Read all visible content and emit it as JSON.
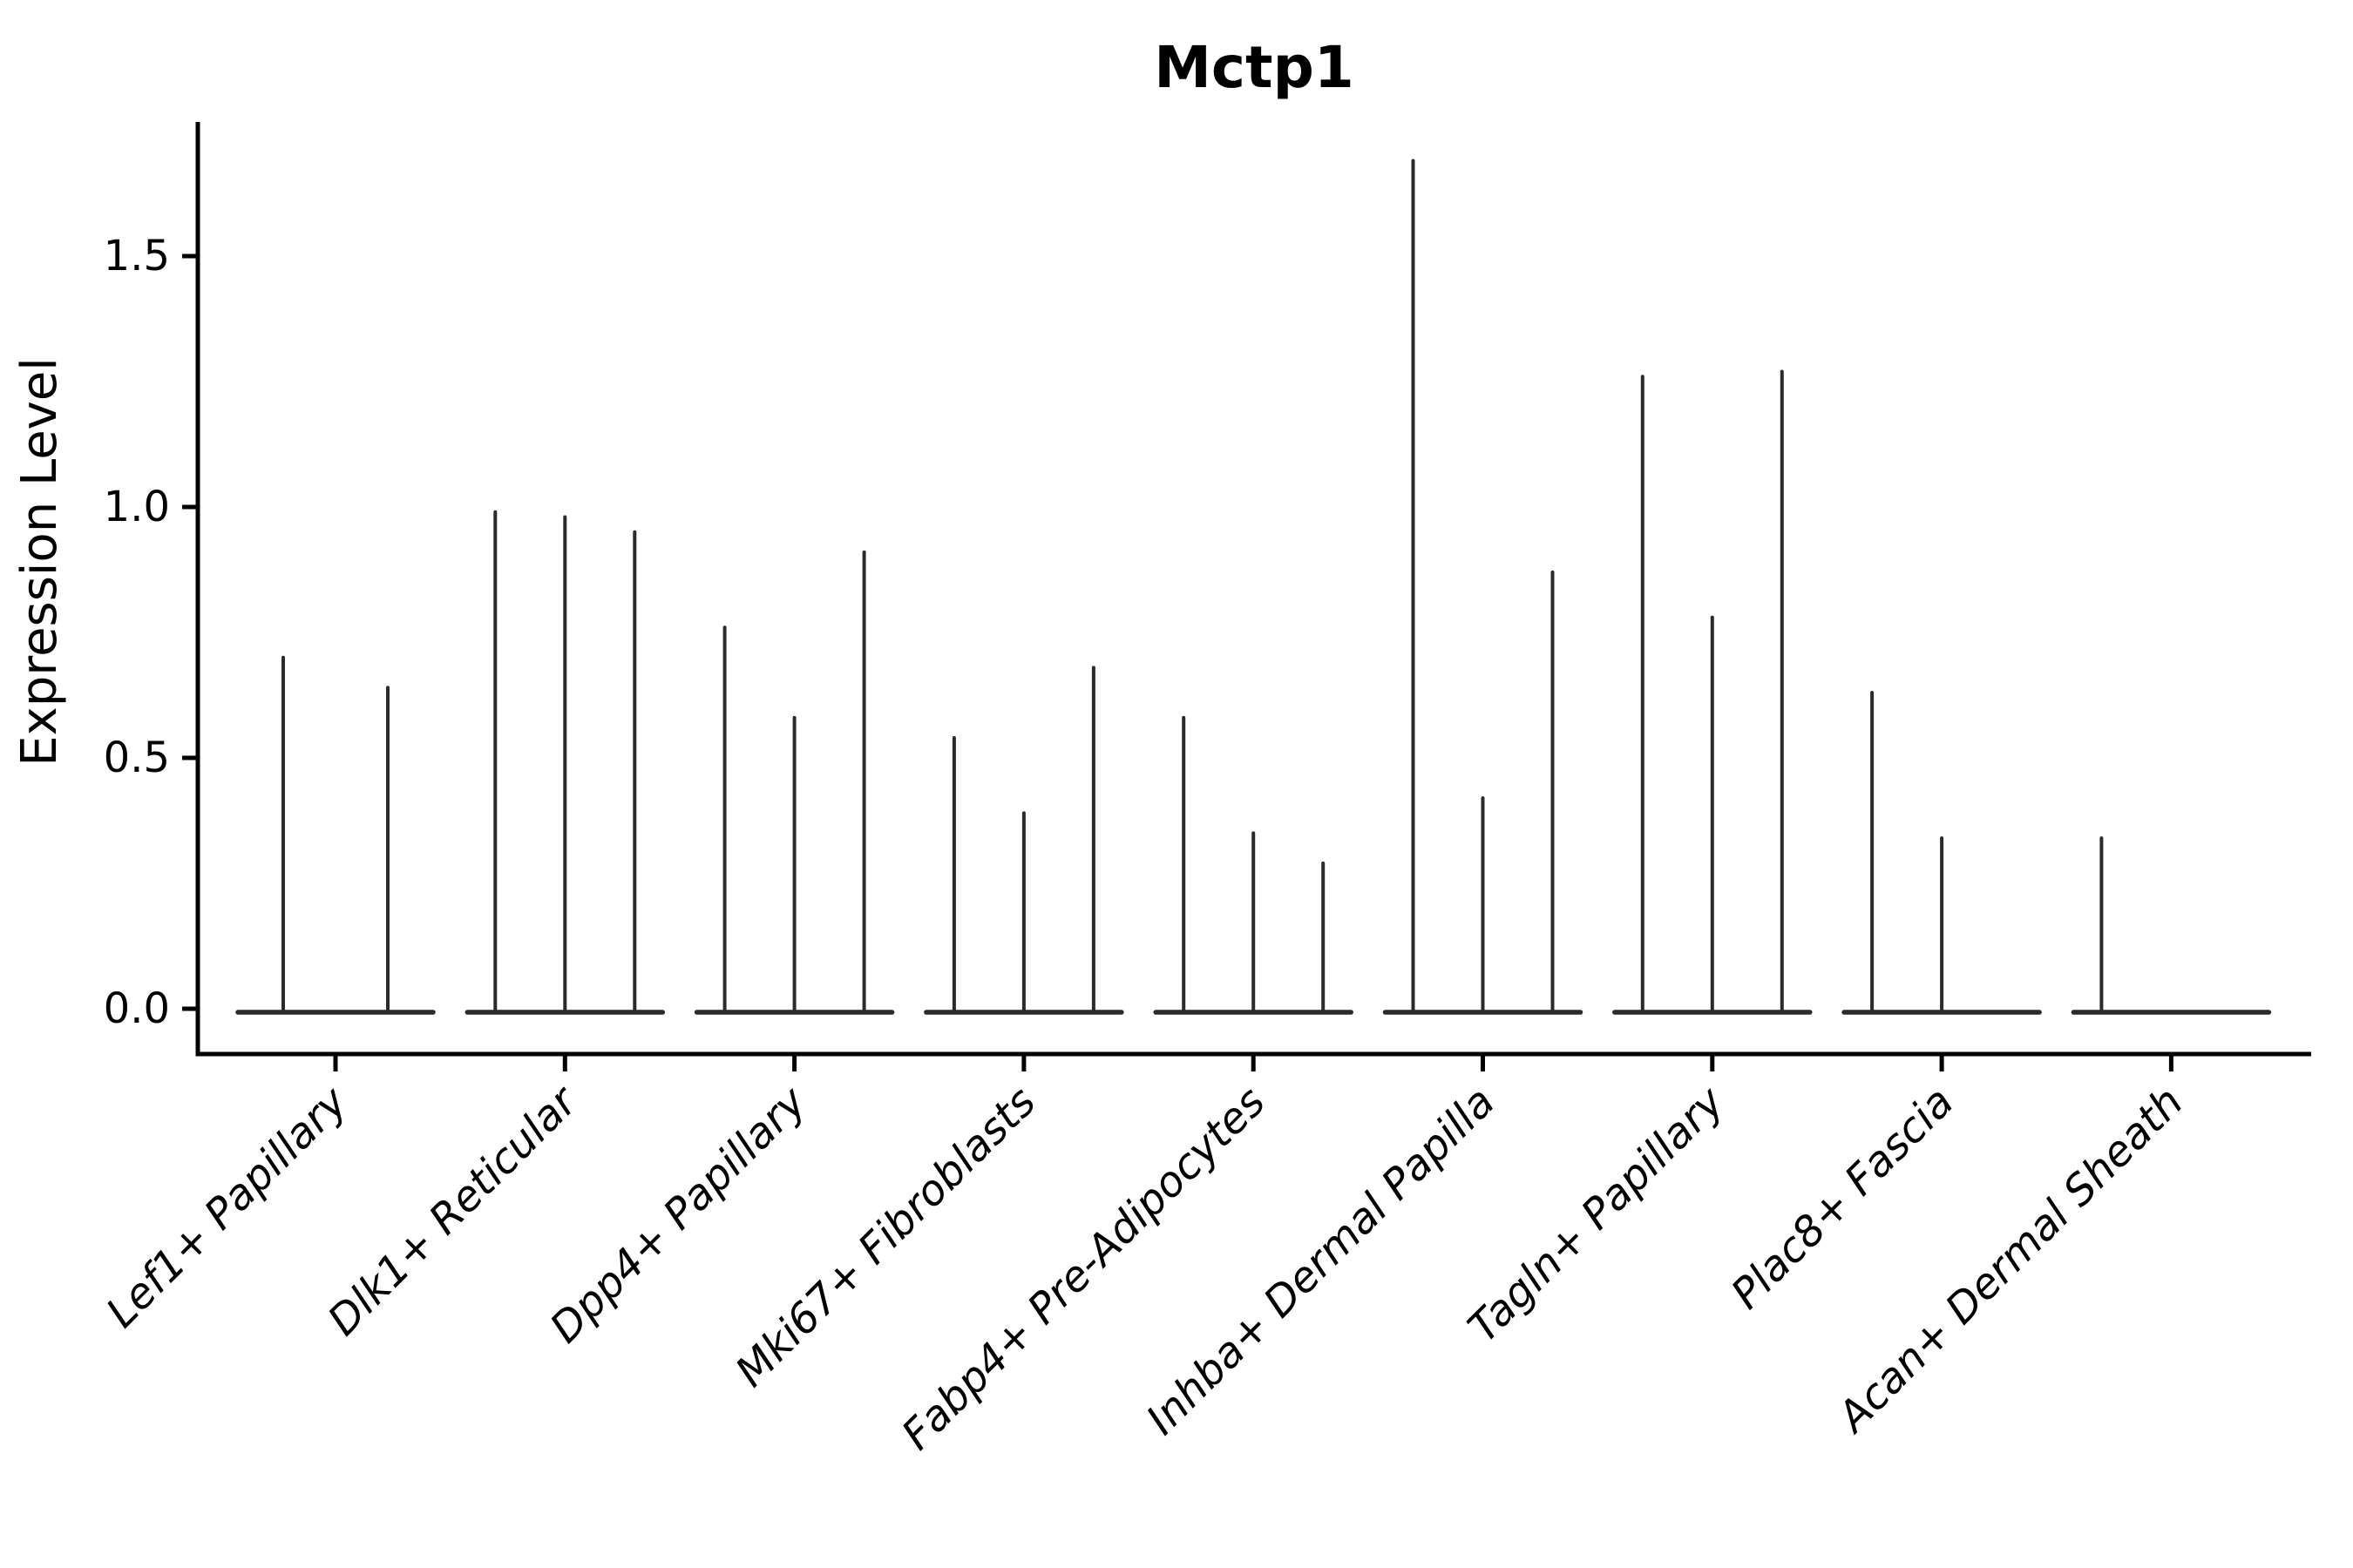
{
  "title": "Mctp1",
  "axes": {
    "ylabel": "Expression Level",
    "ytick_labels": [
      "0.0",
      "0.5",
      "1.0",
      "1.5"
    ]
  },
  "colors": {
    "violin": "#2b2b2b",
    "spine": "#000000",
    "text": "#000000",
    "background": "#ffffff"
  },
  "chart_data": {
    "type": "violin",
    "title": "Mctp1",
    "xlabel": "",
    "ylabel": "Expression Level",
    "ylim": [
      -0.06,
      1.78
    ],
    "yticks": [
      0.0,
      0.5,
      1.0,
      1.5
    ],
    "grid": false,
    "legend": "none",
    "description": "Single-cell gene expression violin plot; each cluster holds narrow near-zero violins whose thin spikes mark the maximum expression reached. Spike value 0 means a flat violin with no spike.",
    "categories": [
      "Lef1+ Papillary",
      "Dlk1+ Reticular",
      "Dpp4+ Papillary",
      "Mki67+ Fibroblasts",
      "Fabp4+ Pre-Adipocytes",
      "Inhba+ Dermal Papilla",
      "Tagln+ Papillary",
      "Plac8+ Fascia",
      "Acan+ Dermal Sheath"
    ],
    "groups": [
      {
        "label": "Lef1+ Papillary",
        "spikes": [
          0.7,
          0.64
        ]
      },
      {
        "label": "Dlk1+ Reticular",
        "spikes": [
          0.99,
          0.98,
          0.95
        ]
      },
      {
        "label": "Dpp4+ Papillary",
        "spikes": [
          0.76,
          0.58,
          0.91
        ]
      },
      {
        "label": "Mki67+ Fibroblasts",
        "spikes": [
          0.54,
          0.39,
          0.68
        ]
      },
      {
        "label": "Fabp4+ Pre-Adipocytes",
        "spikes": [
          0.58,
          0.35,
          0.29
        ]
      },
      {
        "label": "Inhba+ Dermal Papilla",
        "spikes": [
          1.69,
          0.42,
          0.87
        ]
      },
      {
        "label": "Tagln+ Papillary",
        "spikes": [
          1.26,
          0.78,
          1.27
        ]
      },
      {
        "label": "Plac8+ Fascia",
        "spikes": [
          0.63,
          0.34,
          0
        ]
      },
      {
        "label": "Acan+ Dermal Sheath",
        "spikes": [
          0.34,
          0,
          0
        ]
      }
    ]
  }
}
